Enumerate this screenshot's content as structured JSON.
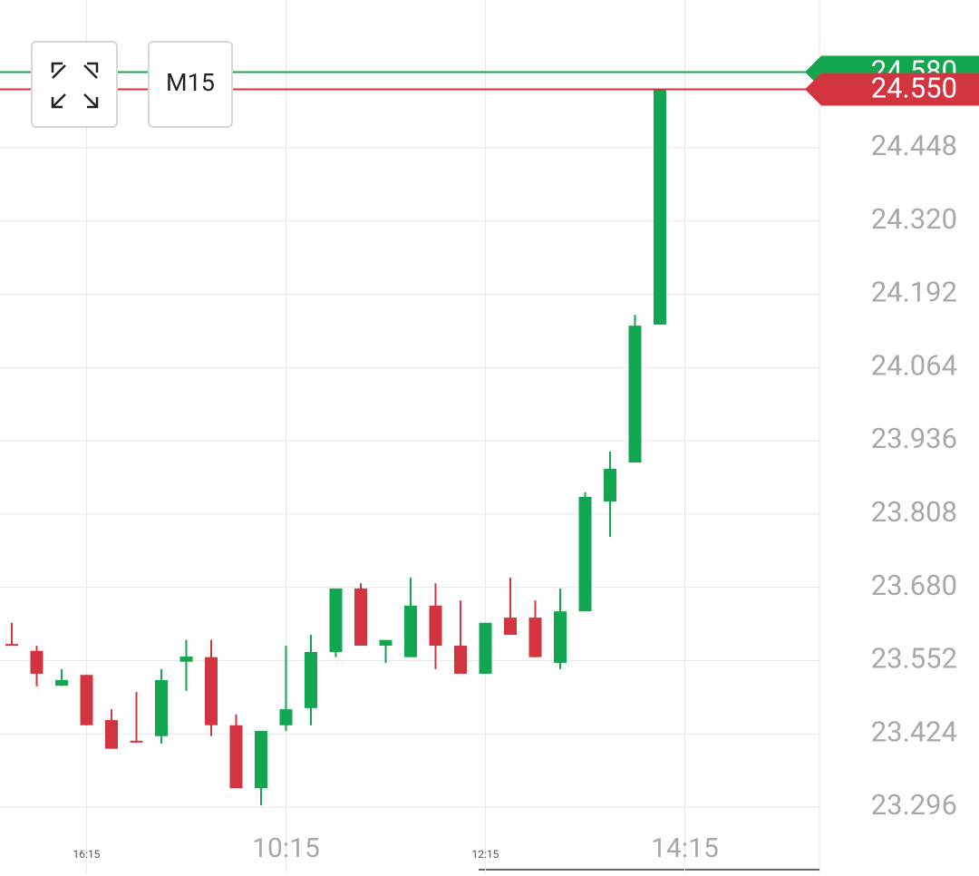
{
  "chart_data": {
    "type": "candlestick",
    "timeframe": "M15",
    "categories": [
      null,
      null,
      null,
      "16:15",
      null,
      null,
      null,
      null,
      null,
      null,
      null,
      "10:15",
      null,
      null,
      null,
      null,
      null,
      null,
      null,
      "12:15",
      null,
      null,
      null,
      null,
      null,
      null,
      null,
      "14:15"
    ],
    "open": [
      23.581,
      23.569,
      23.508,
      23.527,
      23.448,
      23.412,
      23.42,
      23.55,
      23.558,
      23.439,
      23.329,
      23.439,
      23.469,
      23.567,
      23.678,
      23.578,
      23.558,
      23.648,
      23.578,
      23.529,
      23.627,
      23.627,
      23.548,
      23.638,
      23.83,
      23.898,
      24.139,
      null
    ],
    "high": [
      23.618,
      23.578,
      23.537,
      23.527,
      23.467,
      23.497,
      23.537,
      23.588,
      23.588,
      23.458,
      23.429,
      23.578,
      23.597,
      23.678,
      23.687,
      23.588,
      23.697,
      23.687,
      23.657,
      23.618,
      23.697,
      23.657,
      23.678,
      23.846,
      23.917,
      24.156,
      24.55,
      null
    ],
    "low": [
      23.578,
      23.507,
      23.508,
      23.439,
      23.398,
      23.409,
      23.407,
      23.499,
      23.42,
      23.329,
      23.299,
      23.429,
      23.439,
      23.558,
      23.578,
      23.548,
      23.558,
      23.537,
      23.529,
      23.529,
      23.597,
      23.558,
      23.537,
      23.638,
      23.768,
      23.898,
      24.139,
      null
    ],
    "close": [
      23.578,
      23.529,
      23.518,
      23.439,
      23.398,
      23.409,
      23.518,
      23.559,
      23.439,
      23.329,
      23.429,
      23.467,
      23.567,
      23.678,
      23.578,
      23.588,
      23.648,
      23.578,
      23.529,
      23.618,
      23.597,
      23.558,
      23.638,
      23.838,
      23.887,
      24.137,
      24.55,
      null
    ],
    "up_color": "#12a650",
    "down_color": "#d33540",
    "ask": {
      "value": 24.58,
      "label": "24.580"
    },
    "bid": {
      "value": 24.55,
      "label": "24.550"
    },
    "ylim": [
      23.182,
      24.706
    ],
    "yticks": [
      23.296,
      23.424,
      23.552,
      {
        "value": 23.68,
        "label": "23.680"
      },
      23.808,
      23.936,
      24.064,
      24.192,
      {
        "value": 24.32,
        "label": "24.320"
      },
      24.448
    ],
    "grid": true
  }
}
